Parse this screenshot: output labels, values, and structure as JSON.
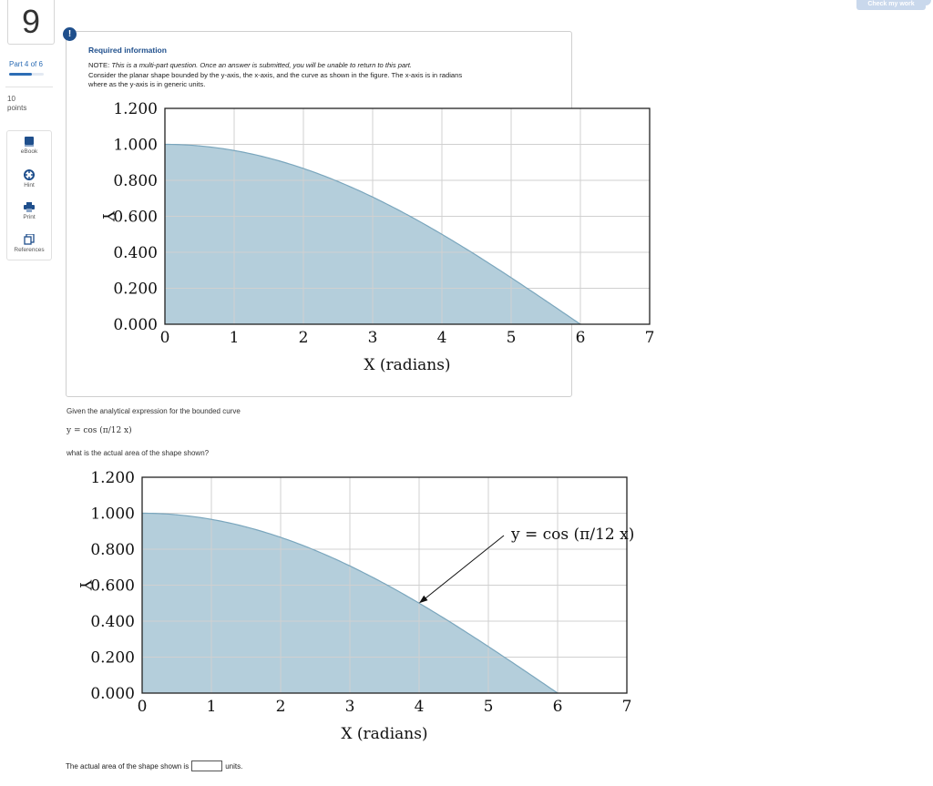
{
  "question": {
    "number": "9",
    "part_label": "Part 4 of 6",
    "part_progress": 0.667,
    "points_value": "10",
    "points_label": "points"
  },
  "tools": [
    {
      "label": "eBook",
      "icon": "book-icon"
    },
    {
      "label": "Hint",
      "icon": "lifebuoy-icon"
    },
    {
      "label": "Print",
      "icon": "printer-icon"
    },
    {
      "label": "References",
      "icon": "copy-icon"
    }
  ],
  "check_button": "Check my work",
  "info": {
    "badge": "!",
    "title": "Required information",
    "note_prefix": "NOTE: ",
    "note_italic": "This is a multi-part question. Once an answer is submitted, you will be unable to return to this part.",
    "line2": "Consider the planar shape bounded by the y-axis, the x-axis, and the curve as shown in the figure. The x-axis is in radians",
    "line3": "where as the y-axis is in generic units."
  },
  "question_text": {
    "given": "Given the analytical expression for the bounded curve",
    "formula": "y = cos (π/12 x)",
    "ask": "what is the actual area of the shape shown?",
    "answer_prefix": "The actual area of the shape shown is",
    "answer_value": "",
    "answer_units": "units."
  },
  "chart_data": [
    {
      "type": "area",
      "title": "",
      "xlabel": "X (radians)",
      "ylabel": "Y",
      "xlim": [
        0,
        7
      ],
      "ylim": [
        0,
        1.2
      ],
      "x_ticks": [
        "0",
        "1",
        "2",
        "3",
        "4",
        "5",
        "6",
        "7"
      ],
      "y_ticks": [
        "0.000",
        "0.200",
        "0.400",
        "0.600",
        "0.800",
        "1.000",
        "1.200"
      ],
      "grid": true,
      "fill_color": "#b4cedb",
      "line_color": "#7aa6bd",
      "series": [
        {
          "x": [
            0,
            0.5,
            1,
            1.5,
            2,
            2.5,
            3,
            3.5,
            4,
            4.5,
            5,
            5.5,
            6
          ],
          "values": [
            1.0,
            0.991,
            0.966,
            0.924,
            0.866,
            0.793,
            0.707,
            0.609,
            0.5,
            0.383,
            0.259,
            0.131,
            0.0
          ]
        }
      ]
    },
    {
      "type": "area",
      "title": "",
      "xlabel": "X (radians)",
      "ylabel": "Y",
      "xlim": [
        0,
        7
      ],
      "ylim": [
        0,
        1.2
      ],
      "x_ticks": [
        "0",
        "1",
        "2",
        "3",
        "4",
        "5",
        "6",
        "7"
      ],
      "y_ticks": [
        "0.000",
        "0.200",
        "0.400",
        "0.600",
        "0.800",
        "1.000",
        "1.200"
      ],
      "grid": true,
      "fill_color": "#b4cedb",
      "line_color": "#7aa6bd",
      "annotation": {
        "text": "y = cos (π/12 x)",
        "points_to_x": 4,
        "points_to_y": 0.5
      },
      "series": [
        {
          "x": [
            0,
            0.5,
            1,
            1.5,
            2,
            2.5,
            3,
            3.5,
            4,
            4.5,
            5,
            5.5,
            6
          ],
          "values": [
            1.0,
            0.991,
            0.966,
            0.924,
            0.866,
            0.793,
            0.707,
            0.609,
            0.5,
            0.383,
            0.259,
            0.131,
            0.0
          ]
        }
      ]
    }
  ]
}
